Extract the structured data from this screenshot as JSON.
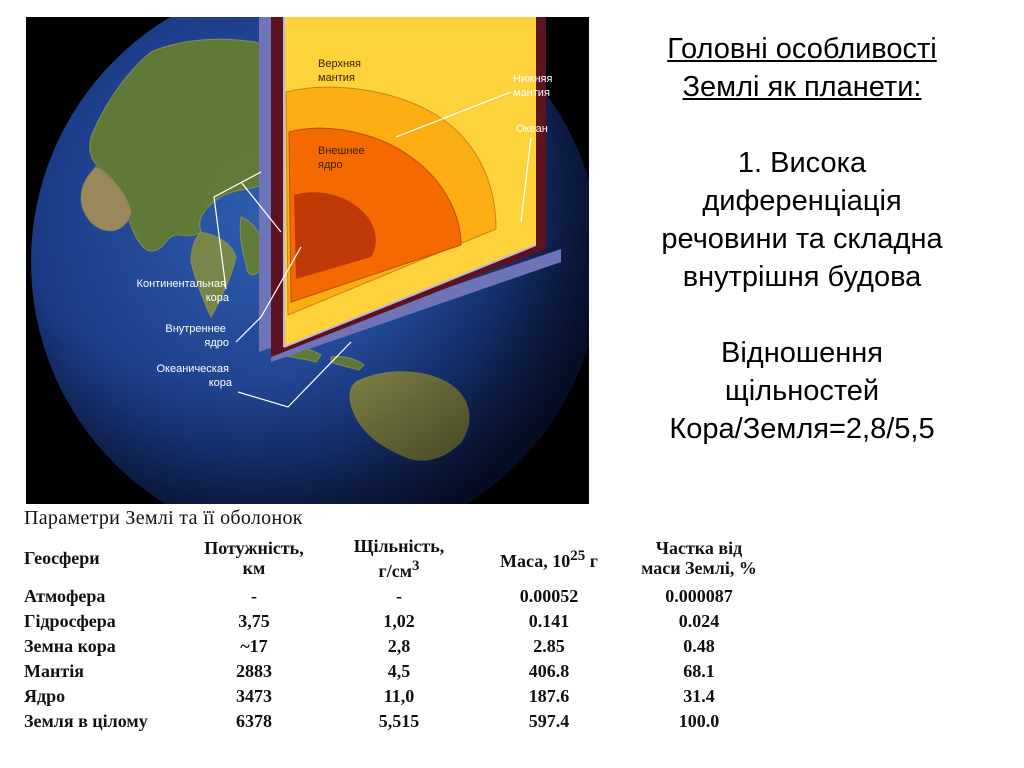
{
  "figure": {
    "labels": {
      "upper_mantle": [
        "Верхняя",
        "мантия"
      ],
      "lower_mantle": [
        "Нижняя",
        "мантия"
      ],
      "ocean": [
        "Океан"
      ],
      "outer_core": [
        "Внешнее",
        "ядро"
      ],
      "continental_crust": [
        "Континентальная",
        "кора"
      ],
      "inner_core": [
        "Внутреннее",
        "ядро"
      ],
      "oceanic_crust": [
        "Океаническая",
        "кора"
      ]
    },
    "colors": {
      "ocean": "#1d3f8a",
      "land": "#5f7a2e",
      "inner_core": "#c03a08",
      "outer_core": "#f46a00",
      "lower_mantle": "#fbad12",
      "upper_mantle": "#fdd23a",
      "crust": "#5c1220",
      "cut_edge": "#6f73b8"
    }
  },
  "text": {
    "title_line1": "Головні особливості",
    "title_line2": "Землі як планети:",
    "point_line1": "1. Висока",
    "point_line2": "диференціація",
    "point_line3": "речовини та складна",
    "point_line4": "внутрішня будова",
    "ratio_line1": "Відношення",
    "ratio_line2": "щільностей",
    "ratio_line3": "Кора/Земля=2,8/5,5"
  },
  "table": {
    "caption": "Параметри Землі та її оболонок",
    "headers": {
      "geosphere": "Геосфери",
      "thickness_1": "Потужність,",
      "thickness_2": "км",
      "density_1": "Щільність,",
      "density_2": "г/см",
      "density_sup": "3",
      "mass": "Маса, 10",
      "mass_sup": "25",
      "mass_unit": " г",
      "share_1": "Частка від",
      "share_2": "маси Землі, %"
    },
    "rows": [
      {
        "name": "Атмофера",
        "thickness": "-",
        "density": "-",
        "mass": "0.00052",
        "share": "0.000087"
      },
      {
        "name": "Гідросфера",
        "thickness": "3,75",
        "density": "1,02",
        "mass": "0.141",
        "share": "0.024"
      },
      {
        "name": "Земна кора",
        "thickness": "~17",
        "density": "2,8",
        "mass": "2.85",
        "share": "0.48"
      },
      {
        "name": "Мантія",
        "thickness": "2883",
        "density": "4,5",
        "mass": "406.8",
        "share": "68.1"
      },
      {
        "name": "Ядро",
        "thickness": "3473",
        "density": "11,0",
        "mass": "187.6",
        "share": "31.4"
      },
      {
        "name": "Земля в цілому",
        "thickness": "6378",
        "density": "5,515",
        "mass": "597.4",
        "share": "100.0"
      }
    ]
  }
}
